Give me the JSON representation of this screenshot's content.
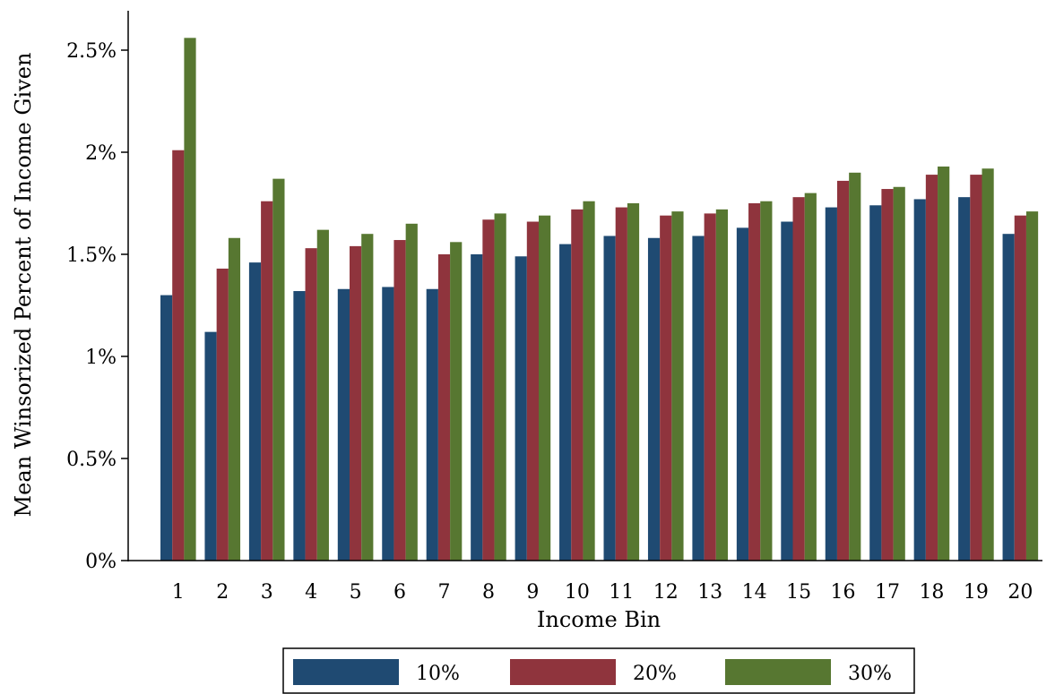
{
  "chart_data": {
    "type": "bar",
    "xlabel": "Income Bin",
    "ylabel": "Mean Winsorized Percent of Income Given",
    "ylim": [
      0,
      2.6
    ],
    "yticks": [
      0,
      0.5,
      1,
      1.5,
      2,
      2.5
    ],
    "ytick_labels": [
      "0%",
      "0.5%",
      "1%",
      "1.5%",
      "2%",
      "2.5%"
    ],
    "categories": [
      "1",
      "2",
      "3",
      "4",
      "5",
      "6",
      "7",
      "8",
      "9",
      "10",
      "11",
      "12",
      "13",
      "14",
      "15",
      "16",
      "17",
      "18",
      "19",
      "20"
    ],
    "series": [
      {
        "name": "10%",
        "color": "#1f4a72",
        "values": [
          1.3,
          1.12,
          1.46,
          1.32,
          1.33,
          1.34,
          1.33,
          1.5,
          1.49,
          1.55,
          1.59,
          1.58,
          1.59,
          1.63,
          1.66,
          1.73,
          1.74,
          1.77,
          1.78,
          1.6
        ]
      },
      {
        "name": "20%",
        "color": "#8f343d",
        "values": [
          2.01,
          1.43,
          1.76,
          1.53,
          1.54,
          1.57,
          1.5,
          1.67,
          1.66,
          1.72,
          1.73,
          1.69,
          1.7,
          1.75,
          1.78,
          1.86,
          1.82,
          1.89,
          1.89,
          1.69
        ]
      },
      {
        "name": "30%",
        "color": "#577731",
        "values": [
          2.56,
          1.58,
          1.87,
          1.62,
          1.6,
          1.65,
          1.56,
          1.7,
          1.69,
          1.76,
          1.75,
          1.71,
          1.72,
          1.76,
          1.8,
          1.9,
          1.83,
          1.93,
          1.92,
          1.71
        ]
      }
    ],
    "grid": false,
    "legend_position": "bottom"
  }
}
